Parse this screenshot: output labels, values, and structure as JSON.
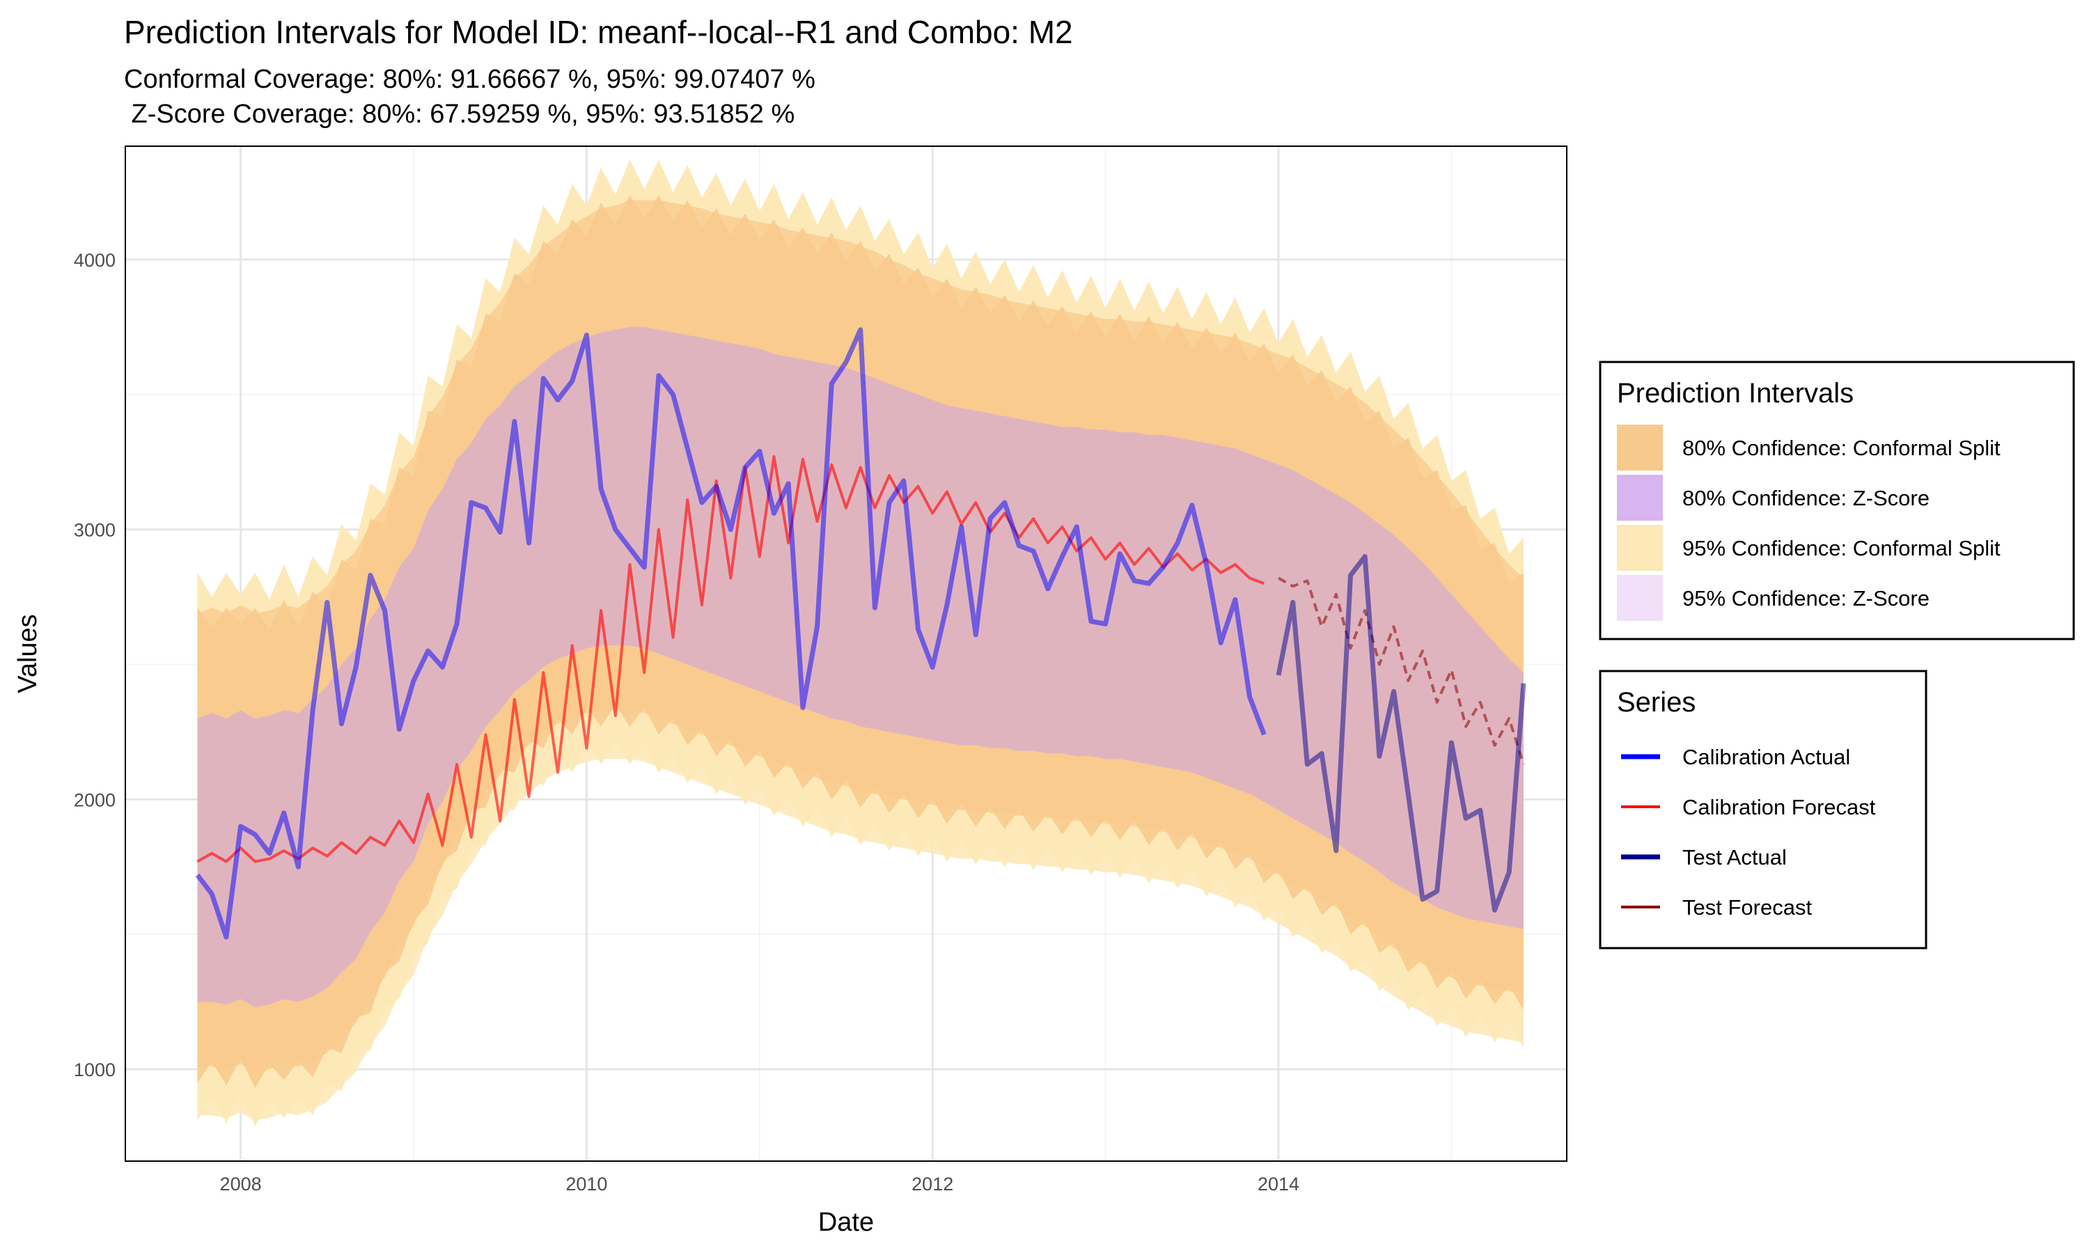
{
  "chart_data": {
    "type": "line",
    "title": "Prediction Intervals for Model ID: meanf--local--R1 and Combo: M2",
    "subtitle_lines": [
      "Conformal Coverage: 80%: 91.66667 %, 95%: 99.07407 %",
      " Z-Score Coverage: 80%: 67.59259 %, 95%: 93.51852 %"
    ],
    "xlabel": "Date",
    "ylabel": "Values",
    "x_ticks": [
      "2008",
      "2010",
      "2012",
      "2014"
    ],
    "y_ticks": [
      "1000",
      "2000",
      "3000",
      "4000"
    ],
    "xlim": [
      "2007-05",
      "2015-09"
    ],
    "ylim": [
      660,
      4420
    ],
    "grid": true,
    "legend_position": "right",
    "legends": [
      {
        "title": "Prediction Intervals",
        "entries": [
          {
            "label": "80% Confidence: Conformal Split",
            "color": "#f8c98c"
          },
          {
            "label": "80% Confidence: Z-Score",
            "color": "#d8b4f0"
          },
          {
            "label": "95% Confidence: Conformal Split",
            "color": "#fde9b8"
          },
          {
            "label": "95% Confidence: Z-Score",
            "color": "#f1e0f7"
          }
        ]
      },
      {
        "title": "Series",
        "entries": [
          {
            "label": "Calibration Actual",
            "color": "#0000ff"
          },
          {
            "label": "Calibration Forecast",
            "color": "#ff0000"
          },
          {
            "label": "Test Actual",
            "color": "#00008b"
          },
          {
            "label": "Test Forecast",
            "color": "#8b0000"
          }
        ]
      }
    ],
    "start": "2007-10",
    "calibration_end": "2013-12",
    "test_start": "2014-01",
    "end": "2015-06",
    "actual": [
      1720,
      1650,
      1490,
      1900,
      1870,
      1800,
      1950,
      1750,
      2330,
      2730,
      2280,
      2490,
      2830,
      2700,
      2260,
      2440,
      2550,
      2490,
      2650,
      3100,
      3080,
      2990,
      3400,
      2950,
      3560,
      3480,
      3550,
      3720,
      3150,
      3000,
      2930,
      2860,
      3570,
      3500,
      3300,
      3100,
      3160,
      3000,
      3230,
      3290,
      3060,
      3170,
      2340,
      2640,
      3540,
      3620,
      3740,
      2710,
      3100,
      3180,
      2630,
      2490,
      2720,
      3010,
      2610,
      3040,
      3100,
      2940,
      2920,
      2780,
      2900,
      3010,
      2660,
      2650,
      2910,
      2810,
      2800,
      2860,
      2950,
      3090,
      2870,
      2580,
      2740,
      2380,
      2240,
      2460,
      2730,
      2130,
      2170,
      1810,
      2830,
      2900,
      2160,
      2400,
      2020,
      1630,
      1660,
      2210,
      1930,
      1960,
      1590,
      1730,
      2430
    ],
    "forecast": [
      1770,
      1800,
      1770,
      1820,
      1770,
      1780,
      1810,
      1780,
      1820,
      1790,
      1840,
      1800,
      1860,
      1830,
      1920,
      1840,
      2020,
      1830,
      2130,
      1860,
      2240,
      1920,
      2370,
      2010,
      2470,
      2100,
      2570,
      2190,
      2700,
      2310,
      2870,
      2470,
      3000,
      2600,
      3110,
      2720,
      3180,
      2820,
      3230,
      2900,
      3270,
      2950,
      3260,
      3030,
      3240,
      3080,
      3230,
      3080,
      3200,
      3100,
      3160,
      3060,
      3140,
      3020,
      3100,
      2990,
      3060,
      2970,
      3040,
      2950,
      3010,
      2920,
      2970,
      2890,
      2950,
      2870,
      2930,
      2860,
      2910,
      2850,
      2890,
      2840,
      2870,
      2820,
      2800,
      2820,
      2790,
      2810,
      2640,
      2760,
      2560,
      2700,
      2500,
      2640,
      2440,
      2550,
      2360,
      2480,
      2270,
      2360,
      2200,
      2300,
      2130
    ],
    "bands": {
      "z95_upper": [
        2700,
        2720,
        2700,
        2730,
        2700,
        2710,
        2730,
        2720,
        2760,
        2800,
        2880,
        2930,
        3030,
        3100,
        3220,
        3280,
        3430,
        3500,
        3620,
        3680,
        3790,
        3850,
        3940,
        3990,
        4060,
        4100,
        4140,
        4170,
        4200,
        4210,
        4230,
        4230,
        4230,
        4220,
        4210,
        4200,
        4180,
        4170,
        4160,
        4150,
        4140,
        4120,
        4110,
        4100,
        4090,
        4080,
        4060,
        4040,
        4010,
        3990,
        3960,
        3940,
        3920,
        3900,
        3890,
        3880,
        3860,
        3850,
        3840,
        3830,
        3820,
        3810,
        3800,
        3790,
        3790,
        3780,
        3780,
        3770,
        3760,
        3750,
        3740,
        3730,
        3720,
        3700,
        3680,
        3660,
        3640,
        3610,
        3580,
        3550,
        3520,
        3480,
        3430,
        3380,
        3330,
        3270,
        3210,
        3150,
        3080,
        3010,
        2940,
        2880,
        2830
      ],
      "z80_upper": [
        2300,
        2320,
        2300,
        2330,
        2300,
        2310,
        2330,
        2320,
        2370,
        2420,
        2500,
        2560,
        2670,
        2740,
        2860,
        2930,
        3070,
        3150,
        3260,
        3320,
        3410,
        3460,
        3530,
        3570,
        3620,
        3660,
        3690,
        3710,
        3730,
        3740,
        3750,
        3750,
        3740,
        3730,
        3720,
        3710,
        3700,
        3690,
        3680,
        3670,
        3650,
        3640,
        3630,
        3620,
        3610,
        3600,
        3580,
        3560,
        3540,
        3520,
        3500,
        3480,
        3460,
        3450,
        3440,
        3430,
        3420,
        3410,
        3400,
        3390,
        3380,
        3380,
        3370,
        3370,
        3360,
        3360,
        3350,
        3350,
        3340,
        3330,
        3320,
        3310,
        3300,
        3280,
        3260,
        3240,
        3220,
        3190,
        3160,
        3130,
        3100,
        3060,
        3020,
        2980,
        2930,
        2880,
        2820,
        2760,
        2700,
        2640,
        2580,
        2520,
        2470
      ],
      "z80_lower": [
        1250,
        1250,
        1240,
        1260,
        1230,
        1240,
        1260,
        1250,
        1270,
        1300,
        1360,
        1410,
        1510,
        1580,
        1700,
        1770,
        1910,
        1990,
        2110,
        2180,
        2270,
        2330,
        2400,
        2440,
        2490,
        2520,
        2540,
        2560,
        2570,
        2570,
        2570,
        2560,
        2540,
        2520,
        2500,
        2480,
        2460,
        2440,
        2420,
        2400,
        2380,
        2360,
        2340,
        2320,
        2300,
        2290,
        2270,
        2260,
        2250,
        2240,
        2230,
        2220,
        2210,
        2200,
        2200,
        2190,
        2190,
        2180,
        2180,
        2170,
        2170,
        2160,
        2160,
        2150,
        2150,
        2140,
        2130,
        2120,
        2110,
        2100,
        2080,
        2060,
        2040,
        2020,
        1990,
        1960,
        1930,
        1900,
        1870,
        1840,
        1800,
        1770,
        1730,
        1690,
        1660,
        1630,
        1600,
        1580,
        1560,
        1550,
        1540,
        1530,
        1520
      ],
      "z95_lower": [
        830,
        830,
        820,
        840,
        810,
        820,
        840,
        830,
        850,
        880,
        940,
        990,
        1090,
        1160,
        1280,
        1350,
        1490,
        1570,
        1690,
        1760,
        1850,
        1910,
        1980,
        2020,
        2070,
        2100,
        2120,
        2140,
        2150,
        2150,
        2150,
        2140,
        2120,
        2100,
        2080,
        2060,
        2040,
        2020,
        2000,
        1980,
        1960,
        1940,
        1920,
        1900,
        1880,
        1870,
        1850,
        1840,
        1830,
        1820,
        1810,
        1800,
        1790,
        1780,
        1780,
        1770,
        1770,
        1760,
        1760,
        1750,
        1750,
        1740,
        1740,
        1730,
        1730,
        1720,
        1710,
        1700,
        1690,
        1680,
        1660,
        1640,
        1620,
        1600,
        1570,
        1540,
        1510,
        1480,
        1450,
        1420,
        1380,
        1350,
        1310,
        1270,
        1240,
        1210,
        1180,
        1160,
        1140,
        1130,
        1120,
        1110,
        1100
      ]
    }
  }
}
